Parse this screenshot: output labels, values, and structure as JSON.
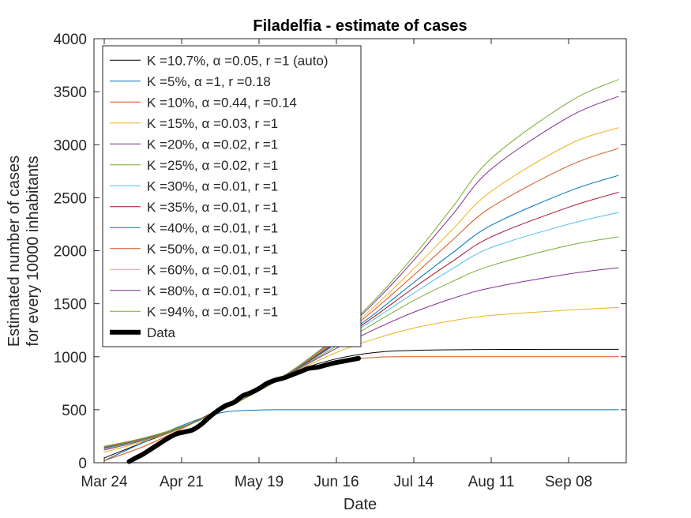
{
  "chart_data": {
    "type": "line",
    "title": "Filadelfia - estimate of cases",
    "xlabel": "Date",
    "ylabel_lines": [
      "Estimated number of cases",
      "for every 10000 inhabitants"
    ],
    "xlim_days": [
      0,
      186
    ],
    "ylim": [
      0,
      4000
    ],
    "x_ticks": [
      {
        "label": "Mar 24",
        "day": 0
      },
      {
        "label": "Apr 21",
        "day": 28
      },
      {
        "label": "May 19",
        "day": 56
      },
      {
        "label": "Jun 16",
        "day": 84
      },
      {
        "label": "Jul 14",
        "day": 112
      },
      {
        "label": "Aug 11",
        "day": 140
      },
      {
        "label": "Sep 08",
        "day": 168
      }
    ],
    "y_ticks": [
      0,
      500,
      1000,
      1500,
      2000,
      2500,
      3000,
      3500,
      4000
    ],
    "grid": false,
    "legend_position": "top-left",
    "series": [
      {
        "label": "K =10.7%, α =0.05, r =1 (auto)",
        "color": "#000000",
        "points": [
          [
            0,
            45
          ],
          [
            14,
            190
          ],
          [
            28,
            330
          ],
          [
            42,
            510
          ],
          [
            56,
            700
          ],
          [
            70,
            870
          ],
          [
            84,
            980
          ],
          [
            98,
            1040
          ],
          [
            112,
            1060
          ],
          [
            140,
            1068
          ],
          [
            168,
            1070
          ],
          [
            186,
            1070
          ]
        ]
      },
      {
        "label": "K =5%, α =1, r =0.18",
        "color": "#0072BD",
        "points": [
          [
            0,
            20
          ],
          [
            14,
            190
          ],
          [
            28,
            350
          ],
          [
            42,
            470
          ],
          [
            56,
            497
          ],
          [
            70,
            500
          ],
          [
            112,
            500
          ],
          [
            186,
            500
          ]
        ]
      },
      {
        "label": "K =10%, α =0.44, r =0.14",
        "color": "#D95319",
        "points": [
          [
            0,
            20
          ],
          [
            14,
            150
          ],
          [
            28,
            320
          ],
          [
            42,
            510
          ],
          [
            56,
            700
          ],
          [
            70,
            860
          ],
          [
            84,
            960
          ],
          [
            98,
            993
          ],
          [
            112,
            1000
          ],
          [
            186,
            1000
          ]
        ]
      },
      {
        "label": "K =15%, α =0.03, r =1",
        "color": "#EDB120",
        "points": [
          [
            0,
            100
          ],
          [
            14,
            200
          ],
          [
            28,
            330
          ],
          [
            42,
            490
          ],
          [
            56,
            680
          ],
          [
            70,
            870
          ],
          [
            84,
            1040
          ],
          [
            98,
            1170
          ],
          [
            112,
            1270
          ],
          [
            126,
            1340
          ],
          [
            140,
            1390
          ],
          [
            168,
            1440
          ],
          [
            186,
            1465
          ]
        ]
      },
      {
        "label": "K =20%, α =0.02, r =1",
        "color": "#7E2F8E",
        "points": [
          [
            0,
            120
          ],
          [
            14,
            210
          ],
          [
            28,
            330
          ],
          [
            42,
            490
          ],
          [
            56,
            680
          ],
          [
            70,
            880
          ],
          [
            84,
            1080
          ],
          [
            98,
            1260
          ],
          [
            112,
            1420
          ],
          [
            126,
            1550
          ],
          [
            140,
            1650
          ],
          [
            168,
            1780
          ],
          [
            186,
            1840
          ]
        ]
      },
      {
        "label": "K =25%, α =0.02, r =1",
        "color": "#77AC30",
        "points": [
          [
            0,
            130
          ],
          [
            14,
            215
          ],
          [
            28,
            330
          ],
          [
            42,
            490
          ],
          [
            56,
            680
          ],
          [
            70,
            885
          ],
          [
            84,
            1100
          ],
          [
            98,
            1320
          ],
          [
            112,
            1530
          ],
          [
            126,
            1710
          ],
          [
            140,
            1860
          ],
          [
            168,
            2050
          ],
          [
            186,
            2130
          ]
        ]
      },
      {
        "label": "K =30%, α =0.01, r =1",
        "color": "#4DBEEE",
        "points": [
          [
            0,
            135
          ],
          [
            14,
            220
          ],
          [
            28,
            335
          ],
          [
            42,
            490
          ],
          [
            56,
            680
          ],
          [
            70,
            890
          ],
          [
            84,
            1120
          ],
          [
            98,
            1360
          ],
          [
            112,
            1600
          ],
          [
            126,
            1830
          ],
          [
            140,
            2030
          ],
          [
            168,
            2250
          ],
          [
            186,
            2360
          ]
        ]
      },
      {
        "label": "K =35%, α =0.01, r =1",
        "color": "#A2142F",
        "points": [
          [
            0,
            140
          ],
          [
            14,
            222
          ],
          [
            28,
            335
          ],
          [
            42,
            490
          ],
          [
            56,
            680
          ],
          [
            70,
            892
          ],
          [
            84,
            1130
          ],
          [
            98,
            1385
          ],
          [
            112,
            1650
          ],
          [
            126,
            1900
          ],
          [
            140,
            2130
          ],
          [
            168,
            2410
          ],
          [
            186,
            2550
          ]
        ]
      },
      {
        "label": "K =40%, α =0.01, r =1",
        "color": "#0072BD",
        "points": [
          [
            0,
            143
          ],
          [
            14,
            224
          ],
          [
            28,
            336
          ],
          [
            42,
            490
          ],
          [
            56,
            680
          ],
          [
            70,
            895
          ],
          [
            84,
            1140
          ],
          [
            98,
            1410
          ],
          [
            112,
            1700
          ],
          [
            126,
            1980
          ],
          [
            140,
            2240
          ],
          [
            168,
            2560
          ],
          [
            186,
            2710
          ]
        ]
      },
      {
        "label": "K =50%, α =0.01, r =1",
        "color": "#D95319",
        "points": [
          [
            0,
            146
          ],
          [
            14,
            226
          ],
          [
            28,
            337
          ],
          [
            42,
            490
          ],
          [
            56,
            680
          ],
          [
            70,
            900
          ],
          [
            84,
            1155
          ],
          [
            98,
            1450
          ],
          [
            112,
            1770
          ],
          [
            126,
            2100
          ],
          [
            140,
            2410
          ],
          [
            168,
            2800
          ],
          [
            186,
            2965
          ]
        ]
      },
      {
        "label": "K =60%, α =0.01, r =1",
        "color": "#EDB120",
        "points": [
          [
            0,
            149
          ],
          [
            14,
            228
          ],
          [
            28,
            338
          ],
          [
            42,
            490
          ],
          [
            56,
            680
          ],
          [
            70,
            903
          ],
          [
            84,
            1165
          ],
          [
            98,
            1480
          ],
          [
            112,
            1830
          ],
          [
            126,
            2200
          ],
          [
            140,
            2560
          ],
          [
            168,
            3000
          ],
          [
            186,
            3160
          ]
        ]
      },
      {
        "label": "K =80%, α =0.01, r =1",
        "color": "#7E2F8E",
        "points": [
          [
            0,
            152
          ],
          [
            14,
            230
          ],
          [
            28,
            339
          ],
          [
            42,
            490
          ],
          [
            56,
            680
          ],
          [
            70,
            906
          ],
          [
            84,
            1180
          ],
          [
            98,
            1520
          ],
          [
            112,
            1910
          ],
          [
            126,
            2340
          ],
          [
            140,
            2770
          ],
          [
            168,
            3260
          ],
          [
            186,
            3455
          ]
        ]
      },
      {
        "label": "K =94%, α =0.01, r =1",
        "color": "#77AC30",
        "points": [
          [
            0,
            155
          ],
          [
            14,
            232
          ],
          [
            28,
            340
          ],
          [
            42,
            490
          ],
          [
            56,
            680
          ],
          [
            70,
            908
          ],
          [
            84,
            1190
          ],
          [
            98,
            1540
          ],
          [
            112,
            1950
          ],
          [
            126,
            2410
          ],
          [
            140,
            2870
          ],
          [
            168,
            3400
          ],
          [
            186,
            3615
          ]
        ]
      },
      {
        "label": "Data",
        "color": "#000000",
        "bold": true,
        "points": [
          [
            9,
            10
          ],
          [
            11,
            40
          ],
          [
            14,
            80
          ],
          [
            17,
            130
          ],
          [
            20,
            180
          ],
          [
            23,
            230
          ],
          [
            26,
            270
          ],
          [
            29,
            290
          ],
          [
            32,
            310
          ],
          [
            35,
            360
          ],
          [
            38,
            430
          ],
          [
            41,
            490
          ],
          [
            44,
            540
          ],
          [
            47,
            570
          ],
          [
            50,
            630
          ],
          [
            53,
            660
          ],
          [
            56,
            700
          ],
          [
            59,
            750
          ],
          [
            62,
            780
          ],
          [
            65,
            800
          ],
          [
            68,
            830
          ],
          [
            71,
            860
          ],
          [
            74,
            890
          ],
          [
            77,
            900
          ],
          [
            80,
            920
          ],
          [
            83,
            940
          ],
          [
            86,
            955
          ],
          [
            89,
            970
          ],
          [
            92,
            985
          ]
        ]
      }
    ]
  }
}
